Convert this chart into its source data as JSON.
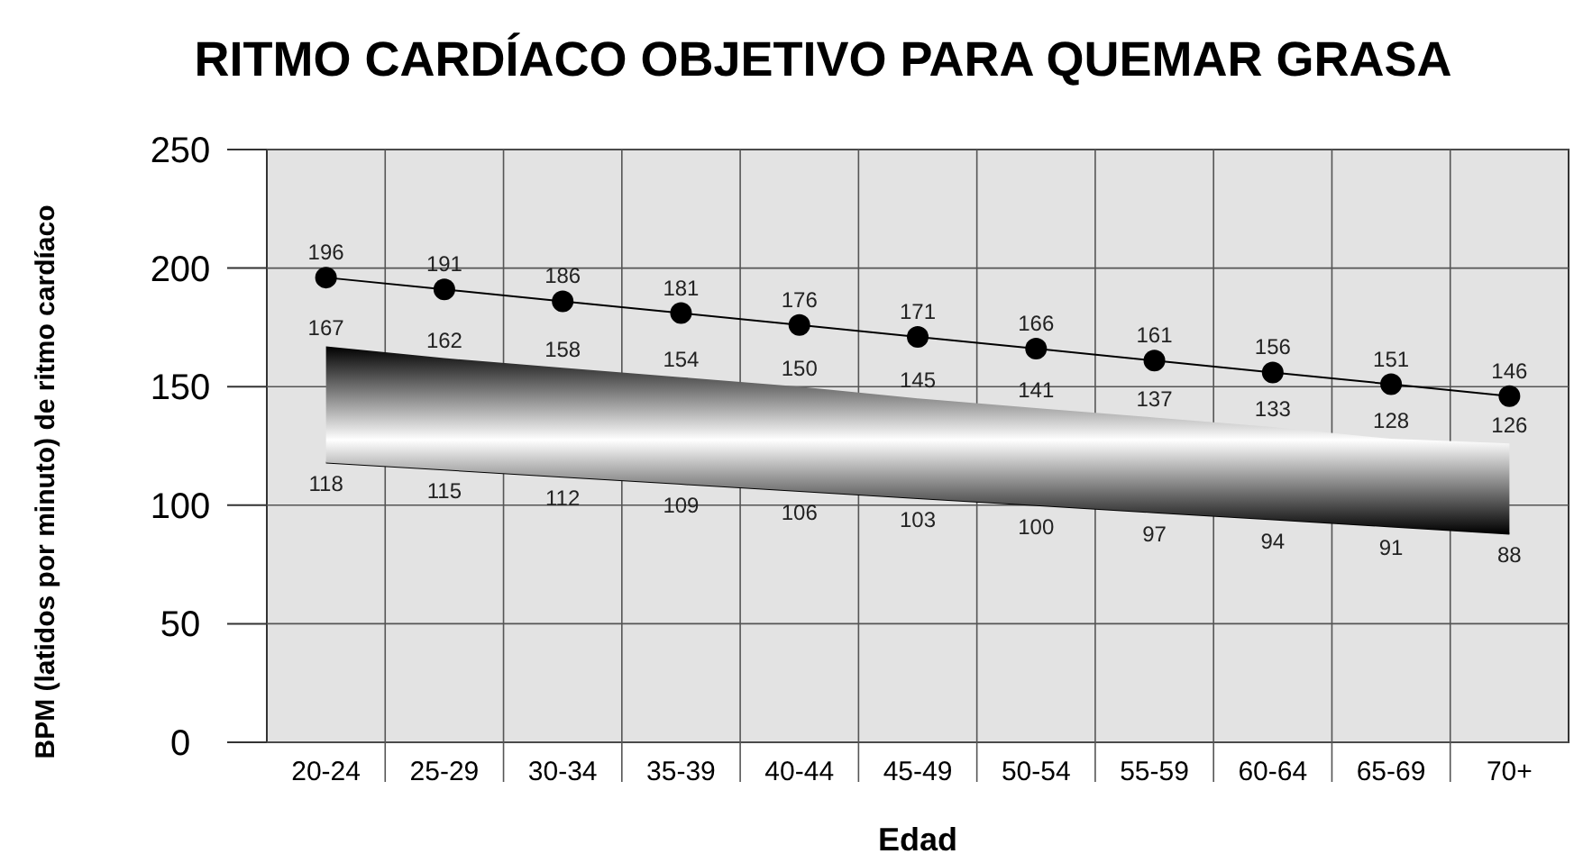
{
  "chart_data": {
    "type": "line",
    "title": "RITMO CARDÍACO OBJETIVO PARA QUEMAR GRASA",
    "xlabel": "Edad",
    "ylabel": "BPM (latidos por minuto) de ritmo cardíaco",
    "categories": [
      "20-24",
      "25-29",
      "30-34",
      "35-39",
      "40-44",
      "45-49",
      "50-54",
      "55-59",
      "60-64",
      "65-69",
      "70+"
    ],
    "series": [
      {
        "type": "line",
        "color": "#000000",
        "values": [
          118,
          115,
          112,
          109,
          106,
          103,
          100,
          97,
          94,
          91,
          88
        ]
      },
      {
        "type": "area",
        "color": "#000000",
        "values": [
          167,
          162,
          158,
          154,
          150,
          145,
          141,
          137,
          133,
          128,
          126
        ]
      },
      {
        "color": "#000000",
        "marker": "circle",
        "values": [
          196,
          191,
          186,
          181,
          176,
          171,
          166,
          161,
          156,
          151,
          146
        ]
      }
    ],
    "ylim": [
      0,
      250
    ],
    "yticks": [
      0,
      50,
      100,
      150,
      200,
      250
    ],
    "grid": true,
    "data_labels": true
  }
}
